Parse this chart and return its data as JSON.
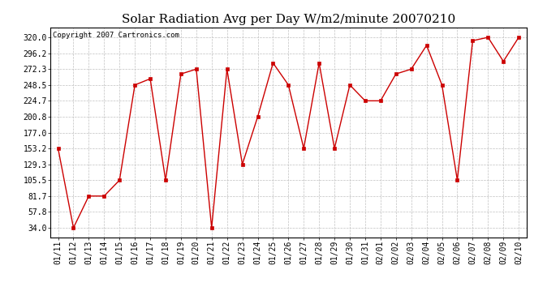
{
  "title": "Solar Radiation Avg per Day W/m2/minute 20070210",
  "copyright": "Copyright 2007 Cartronics.com",
  "x_labels": [
    "01/11",
    "01/12",
    "01/13",
    "01/14",
    "01/15",
    "01/16",
    "01/17",
    "01/18",
    "01/19",
    "01/20",
    "01/21",
    "01/22",
    "01/23",
    "01/24",
    "01/25",
    "01/26",
    "01/27",
    "01/28",
    "01/29",
    "01/30",
    "01/31",
    "02/01",
    "02/02",
    "02/03",
    "02/04",
    "02/05",
    "02/06",
    "02/07",
    "02/08",
    "02/09",
    "02/10"
  ],
  "y_values": [
    153.2,
    34.0,
    81.7,
    81.7,
    105.5,
    248.5,
    257.8,
    105.5,
    265.0,
    272.3,
    34.0,
    272.3,
    129.3,
    200.8,
    281.5,
    248.5,
    153.2,
    281.5,
    153.2,
    248.5,
    224.7,
    224.7,
    265.0,
    272.3,
    308.0,
    248.5,
    105.5,
    315.0,
    320.0,
    284.0,
    320.0
  ],
  "yticks": [
    34.0,
    57.8,
    81.7,
    105.5,
    129.3,
    153.2,
    177.0,
    200.8,
    224.7,
    248.5,
    272.3,
    296.2,
    320.0
  ],
  "ytick_labels": [
    "34.0",
    "57.8",
    "81.7",
    "105.5",
    "129.3",
    "153.2",
    "177.0",
    "200.8",
    "224.7",
    "248.5",
    "272.3",
    "296.2",
    "320.0"
  ],
  "line_color": "#cc0000",
  "marker": "s",
  "marker_size": 2.5,
  "bg_color": "#ffffff",
  "grid_color": "#c0c0c0",
  "title_fontsize": 11,
  "copyright_fontsize": 6.5,
  "tick_fontsize": 7,
  "ylim": [
    20.0,
    335.0
  ],
  "fig_width": 6.9,
  "fig_height": 3.75,
  "dpi": 100
}
